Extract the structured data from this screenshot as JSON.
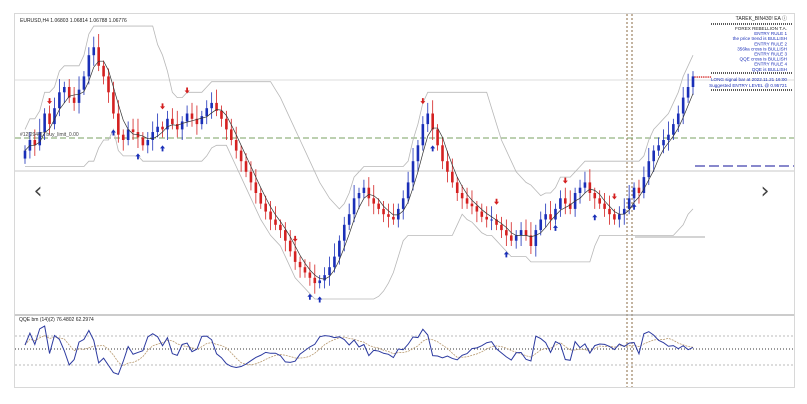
{
  "header": {
    "symbol_ohlc": "EURUSD,H4  1.06803 1.06814 1.06788 1.06776",
    "window_tag": "TAREK_BIN430! EA ⓘ"
  },
  "indicator_label": "#12[2944]2 buy_limit_0.00",
  "signal_panel": {
    "lines": [
      "FOREX REBELLION T.A.",
      "ENTRY RULE 1",
      "the price trend is BULLISH",
      "ENTRY RULE 2",
      "356ka cross is BULLISH",
      "ENTRY RULE 3",
      "QQE cross is BULLISH",
      "ENTRY RULE 4",
      "QQE is BULLISH"
    ],
    "signal_lines": [
      "LONG signal bar at 2022.11.21 16:00",
      "Suggested ENTRY LEVEL @ 0.95721"
    ]
  },
  "qqe_label": "QQE bm (14)(2) 76.4802 62.2974",
  "navigation": {
    "prev_icon": "‹",
    "next_icon": "›"
  },
  "colors": {
    "bull": "#1a2fb8",
    "bear": "#d42020",
    "upper_band": "#b8b8b8",
    "qqe_line": "#2c3aa0",
    "level_line": "#7aa060",
    "dotted_level": "#333333"
  },
  "chart_data": {
    "type": "candlestick",
    "closes": [
      56,
      60,
      58,
      63,
      70,
      66,
      72,
      78,
      80,
      76,
      74,
      79,
      84,
      92,
      95,
      88,
      84,
      78,
      70,
      62,
      60,
      64,
      63,
      61,
      58,
      60,
      63,
      65,
      64,
      68,
      66,
      64,
      67,
      70,
      68,
      66,
      69,
      72,
      74,
      71,
      68,
      64,
      60,
      56,
      52,
      48,
      44,
      40,
      36,
      33,
      30,
      28,
      26,
      22,
      18,
      14,
      12,
      10,
      8,
      6,
      7,
      9,
      12,
      16,
      22,
      28,
      32,
      38,
      40,
      42,
      38,
      36,
      34,
      32,
      31,
      30,
      34,
      38,
      44,
      52,
      58,
      66,
      70,
      64,
      58,
      52,
      48,
      44,
      40,
      38,
      36,
      35,
      33,
      31,
      30,
      30,
      28,
      26,
      24,
      22,
      24,
      26,
      24,
      20,
      26,
      30,
      32,
      30,
      34,
      38,
      36,
      34,
      40,
      42,
      44,
      40,
      38,
      36,
      34,
      32,
      30,
      32,
      34,
      38,
      42,
      40,
      46,
      52,
      56,
      58,
      60,
      62,
      66,
      70,
      76,
      80,
      84
    ]
  }
}
